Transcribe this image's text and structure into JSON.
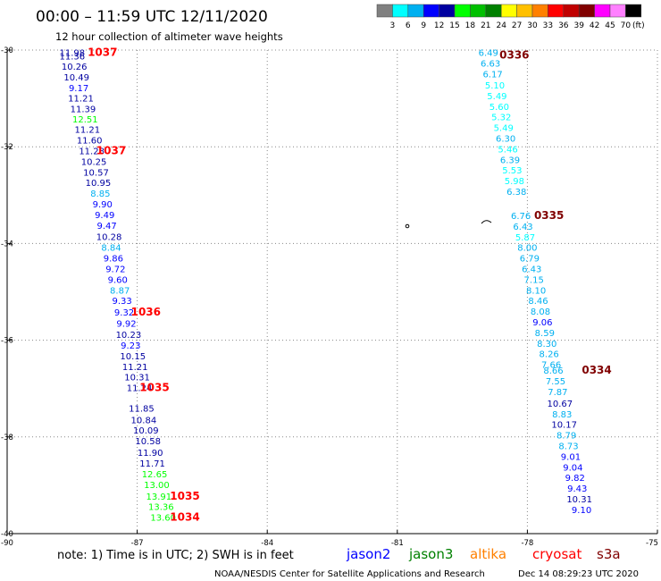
{
  "chart_data": {
    "type": "scatter",
    "title": "00:00 – 11:59 UTC 12/11/2020",
    "subtitle": "12 hour collection of altimeter wave heights",
    "xlabel": "",
    "ylabel": "",
    "xlim": [
      -90,
      -75
    ],
    "ylim": [
      -40,
      -30
    ],
    "x_ticks": [
      -90,
      -87,
      -84,
      -81,
      -78,
      -75
    ],
    "y_ticks": [
      -30,
      -32,
      -34,
      -36,
      -38,
      -40
    ],
    "grid": true,
    "color_scale": {
      "unit": "(ft)",
      "labels": [
        "3",
        "6",
        "9",
        "12",
        "15",
        "18",
        "21",
        "24",
        "27",
        "30",
        "33",
        "36",
        "39",
        "42",
        "45",
        "70"
      ],
      "colors": [
        "#808080",
        "#00ffff",
        "#00b0f0",
        "#0000ff",
        "#0000a0",
        "#00ff00",
        "#00c000",
        "#008000",
        "#ffff00",
        "#ffc000",
        "#ff8000",
        "#ff0000",
        "#c00000",
        "#800000",
        "#ff00ff",
        "#ff80ff",
        "#000000"
      ]
    },
    "series": [
      {
        "name": "jason2",
        "color": "#0000ff",
        "points": [
          {
            "x": -88.5,
            "y": -30.05,
            "v": "11.98",
            "c": "#0000a0"
          },
          {
            "x": -88.5,
            "y": -30.12,
            "v": "11.36",
            "c": "#0000a0"
          },
          {
            "x": -88.45,
            "y": -30.33,
            "v": "10.26",
            "c": "#0000a0"
          },
          {
            "x": -88.4,
            "y": -30.55,
            "v": "10.49",
            "c": "#0000a0"
          },
          {
            "x": -88.35,
            "y": -30.78,
            "v": "9.17",
            "c": "#0000ff"
          },
          {
            "x": -88.3,
            "y": -30.99,
            "v": "11.21",
            "c": "#0000a0"
          },
          {
            "x": -88.25,
            "y": -31.21,
            "v": "11.39",
            "c": "#0000a0"
          },
          {
            "x": -88.2,
            "y": -31.42,
            "v": "12.51",
            "c": "#00ff00"
          },
          {
            "x": -88.15,
            "y": -31.64,
            "v": "11.21",
            "c": "#0000a0"
          },
          {
            "x": -88.1,
            "y": -31.86,
            "v": "11.60",
            "c": "#0000a0"
          },
          {
            "x": -88.05,
            "y": -32.08,
            "v": "11.28",
            "c": "#0000a0"
          },
          {
            "x": -88.0,
            "y": -32.3,
            "v": "10.25",
            "c": "#0000a0"
          },
          {
            "x": -87.95,
            "y": -32.52,
            "v": "10.57",
            "c": "#0000a0"
          },
          {
            "x": -87.9,
            "y": -32.74,
            "v": "10.95",
            "c": "#0000a0"
          },
          {
            "x": -87.85,
            "y": -32.96,
            "v": "8.85",
            "c": "#00b0f0"
          },
          {
            "x": -87.8,
            "y": -33.18,
            "v": "9.90",
            "c": "#0000ff"
          },
          {
            "x": -87.75,
            "y": -33.4,
            "v": "9.49",
            "c": "#0000ff"
          },
          {
            "x": -87.7,
            "y": -33.62,
            "v": "9.47",
            "c": "#0000ff"
          },
          {
            "x": -87.65,
            "y": -33.85,
            "v": "10.28",
            "c": "#0000a0"
          },
          {
            "x": -87.6,
            "y": -34.08,
            "v": "8.84",
            "c": "#00b0f0"
          },
          {
            "x": -87.55,
            "y": -34.3,
            "v": "9.86",
            "c": "#0000ff"
          },
          {
            "x": -87.5,
            "y": -34.52,
            "v": "9.72",
            "c": "#0000ff"
          },
          {
            "x": -87.45,
            "y": -34.74,
            "v": "9.60",
            "c": "#0000ff"
          },
          {
            "x": -87.4,
            "y": -34.96,
            "v": "8.87",
            "c": "#00b0f0"
          },
          {
            "x": -87.35,
            "y": -35.18,
            "v": "9.33",
            "c": "#0000ff"
          },
          {
            "x": -87.3,
            "y": -35.42,
            "v": "9.32",
            "c": "#0000ff"
          },
          {
            "x": -87.25,
            "y": -35.65,
            "v": "9.92",
            "c": "#0000ff"
          },
          {
            "x": -87.2,
            "y": -35.88,
            "v": "10.23",
            "c": "#0000a0"
          },
          {
            "x": -87.15,
            "y": -36.1,
            "v": "9.23",
            "c": "#0000ff"
          },
          {
            "x": -87.1,
            "y": -36.32,
            "v": "10.15",
            "c": "#0000a0"
          },
          {
            "x": -87.05,
            "y": -36.54,
            "v": "11.21",
            "c": "#0000a0"
          },
          {
            "x": -87.0,
            "y": -36.76,
            "v": "10.31",
            "c": "#0000a0"
          },
          {
            "x": -86.95,
            "y": -36.98,
            "v": "11.24",
            "c": "#0000a0"
          },
          {
            "x": -86.9,
            "y": -37.4,
            "v": "11.85",
            "c": "#0000a0"
          },
          {
            "x": -86.85,
            "y": -37.64,
            "v": "10.84",
            "c": "#0000a0"
          },
          {
            "x": -86.8,
            "y": -37.86,
            "v": "10.09",
            "c": "#0000a0"
          },
          {
            "x": -86.75,
            "y": -38.08,
            "v": "10.58",
            "c": "#0000a0"
          },
          {
            "x": -86.7,
            "y": -38.32,
            "v": "11.90",
            "c": "#0000a0"
          },
          {
            "x": -86.65,
            "y": -38.54,
            "v": "11.71",
            "c": "#0000a0"
          },
          {
            "x": -86.6,
            "y": -38.76,
            "v": "12.65",
            "c": "#00ff00"
          },
          {
            "x": -86.55,
            "y": -38.98,
            "v": "13.00",
            "c": "#00ff00"
          },
          {
            "x": -86.5,
            "y": -39.22,
            "v": "13.91",
            "c": "#00ff00"
          },
          {
            "x": -86.45,
            "y": -39.44,
            "v": "13.36",
            "c": "#00ff00"
          },
          {
            "x": -86.4,
            "y": -39.66,
            "v": "13.60",
            "c": "#00ff00"
          }
        ]
      },
      {
        "name": "",
        "color": "#0000ff",
        "points": [
          {
            "x": -78.9,
            "y": -30.05,
            "v": "6.49",
            "c": "#00b0f0"
          },
          {
            "x": -78.85,
            "y": -30.27,
            "v": "6.63",
            "c": "#00b0f0"
          },
          {
            "x": -78.8,
            "y": -30.49,
            "v": "6.17",
            "c": "#00b0f0"
          },
          {
            "x": -78.75,
            "y": -30.72,
            "v": "5.10",
            "c": "#00ffff"
          },
          {
            "x": -78.7,
            "y": -30.94,
            "v": "5.49",
            "c": "#00ffff"
          },
          {
            "x": -78.65,
            "y": -31.16,
            "v": "5.60",
            "c": "#00ffff"
          },
          {
            "x": -78.6,
            "y": -31.38,
            "v": "5.32",
            "c": "#00ffff"
          },
          {
            "x": -78.55,
            "y": -31.6,
            "v": "5.49",
            "c": "#00ffff"
          },
          {
            "x": -78.5,
            "y": -31.82,
            "v": "6.30",
            "c": "#00b0f0"
          },
          {
            "x": -78.45,
            "y": -32.04,
            "v": "5.46",
            "c": "#00ffff"
          },
          {
            "x": -78.4,
            "y": -32.26,
            "v": "6.39",
            "c": "#00b0f0"
          },
          {
            "x": -78.35,
            "y": -32.48,
            "v": "5.53",
            "c": "#00ffff"
          },
          {
            "x": -78.3,
            "y": -32.7,
            "v": "5.98",
            "c": "#00ffff"
          },
          {
            "x": -78.25,
            "y": -32.92,
            "v": "6.38",
            "c": "#00b0f0"
          },
          {
            "x": -78.15,
            "y": -33.42,
            "v": "6.76",
            "c": "#00b0f0"
          },
          {
            "x": -78.1,
            "y": -33.64,
            "v": "6.43",
            "c": "#00b0f0"
          },
          {
            "x": -78.05,
            "y": -33.86,
            "v": "5.87",
            "c": "#00ffff"
          },
          {
            "x": -78.0,
            "y": -34.08,
            "v": "8.00",
            "c": "#00b0f0"
          },
          {
            "x": -77.95,
            "y": -34.3,
            "v": "6.79",
            "c": "#00b0f0"
          },
          {
            "x": -77.9,
            "y": -34.52,
            "v": "6.43",
            "c": "#00b0f0"
          },
          {
            "x": -77.85,
            "y": -34.74,
            "v": "7.15",
            "c": "#00b0f0"
          },
          {
            "x": -77.8,
            "y": -34.96,
            "v": "8.10",
            "c": "#00b0f0"
          },
          {
            "x": -77.75,
            "y": -35.18,
            "v": "8.46",
            "c": "#00b0f0"
          },
          {
            "x": -77.7,
            "y": -35.4,
            "v": "8.08",
            "c": "#00b0f0"
          },
          {
            "x": -77.65,
            "y": -35.62,
            "v": "9.06",
            "c": "#0000ff"
          },
          {
            "x": -77.6,
            "y": -35.84,
            "v": "8.59",
            "c": "#00b0f0"
          },
          {
            "x": -77.55,
            "y": -36.06,
            "v": "8.30",
            "c": "#00b0f0"
          },
          {
            "x": -77.5,
            "y": -36.28,
            "v": "8.26",
            "c": "#00b0f0"
          },
          {
            "x": -77.45,
            "y": -36.5,
            "v": "7.66",
            "c": "#00b0f0"
          },
          {
            "x": -77.4,
            "y": -36.62,
            "v": "8.66",
            "c": "#00b0f0"
          },
          {
            "x": -77.35,
            "y": -36.84,
            "v": "7.55",
            "c": "#00b0f0"
          },
          {
            "x": -77.3,
            "y": -37.06,
            "v": "7.87",
            "c": "#00b0f0"
          },
          {
            "x": -77.25,
            "y": -37.3,
            "v": "10.67",
            "c": "#0000a0"
          },
          {
            "x": -77.2,
            "y": -37.52,
            "v": "8.83",
            "c": "#00b0f0"
          },
          {
            "x": -77.15,
            "y": -37.74,
            "v": "10.17",
            "c": "#0000a0"
          },
          {
            "x": -77.1,
            "y": -37.96,
            "v": "8.79",
            "c": "#00b0f0"
          },
          {
            "x": -77.05,
            "y": -38.18,
            "v": "8.73",
            "c": "#00b0f0"
          },
          {
            "x": -77.0,
            "y": -38.4,
            "v": "9.01",
            "c": "#0000ff"
          },
          {
            "x": -76.95,
            "y": -38.62,
            "v": "9.04",
            "c": "#0000ff"
          },
          {
            "x": -76.9,
            "y": -38.84,
            "v": "9.82",
            "c": "#0000ff"
          },
          {
            "x": -76.85,
            "y": -39.06,
            "v": "9.43",
            "c": "#0000ff"
          },
          {
            "x": -76.8,
            "y": -39.28,
            "v": "10.31",
            "c": "#0000a0"
          },
          {
            "x": -76.75,
            "y": -39.5,
            "v": "9.10",
            "c": "#0000ff"
          }
        ]
      }
    ],
    "time_labels": [
      {
        "x": -87.8,
        "y": -30.05,
        "text": "1037",
        "c": "#ff0000"
      },
      {
        "x": -87.6,
        "y": -32.08,
        "text": "1037",
        "c": "#ff0000"
      },
      {
        "x": -86.8,
        "y": -35.42,
        "text": "1036",
        "c": "#ff0000"
      },
      {
        "x": -86.6,
        "y": -36.98,
        "text": "1035",
        "c": "#ff0000"
      },
      {
        "x": -85.9,
        "y": -39.22,
        "text": "1035",
        "c": "#ff0000"
      },
      {
        "x": -85.9,
        "y": -39.66,
        "text": "1034",
        "c": "#ff0000"
      },
      {
        "x": -78.3,
        "y": -30.1,
        "text": "0336",
        "c": "#800000"
      },
      {
        "x": -77.5,
        "y": -33.42,
        "text": "0335",
        "c": "#800000"
      },
      {
        "x": -76.4,
        "y": -36.62,
        "text": "0334",
        "c": "#800000"
      }
    ]
  },
  "legend": [
    {
      "name": "jason2",
      "color": "#0000ff"
    },
    {
      "name": "jason3",
      "color": "#008000"
    },
    {
      "name": "altika",
      "color": "#ff8000"
    },
    {
      "name": "cryosat",
      "color": "#ff0000"
    },
    {
      "name": "s3a",
      "color": "#800000"
    }
  ],
  "note": "note:  1) Time is in UTC;  2) SWH is in feet",
  "credit": "NOAA/NESDIS Center for Satellite Applications and Research",
  "timestamp": "Dec 14 08:29:23 UTC 2020"
}
